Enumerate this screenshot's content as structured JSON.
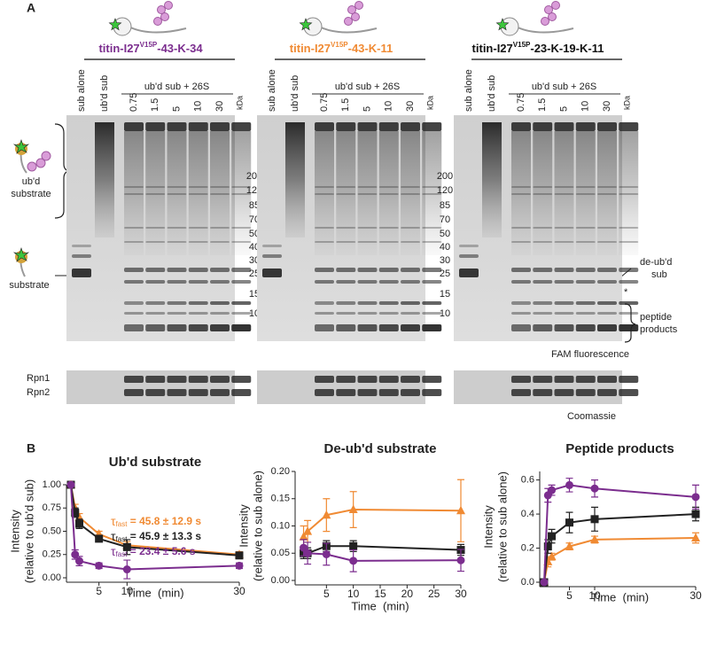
{
  "panel_a": {
    "label": "A",
    "gels": [
      {
        "title": {
          "prefix": "titin-I27",
          "sup": "V15P",
          "suffix": "-43-K-34",
          "color": "#7b2d8e"
        }
      },
      {
        "title": {
          "prefix": "titin-I27",
          "sup": "V15P",
          "suffix": "-43-K-11",
          "color": "#f08a33"
        }
      },
      {
        "title": {
          "prefix": "titin-I27",
          "sup": "V15P",
          "suffix": "-23-K-19-K-11",
          "color": "#111111"
        }
      }
    ],
    "lanes": {
      "sub_alone": "sub alone",
      "ubd_sub": "ub'd sub",
      "group": "ub'd sub + 26S",
      "times": [
        "0.75",
        "1.5",
        "5",
        "10",
        "30"
      ]
    },
    "kda": "kDa",
    "markers": [
      "200",
      "120",
      "85",
      "70",
      "50",
      "40",
      "30",
      "25",
      "15",
      "10"
    ],
    "left_labels": {
      "ubd_substrate": [
        "ub'd",
        "substrate"
      ],
      "substrate": "substrate"
    },
    "right_labels": {
      "deubd": [
        "de-ub'd",
        "sub"
      ],
      "star": "*",
      "peptide": [
        "peptide",
        "products"
      ]
    },
    "fam": "FAM fluorescence",
    "coomassie": {
      "rpn1": "Rpn1",
      "rpn2": "Rpn2",
      "label": "Coomassie"
    }
  },
  "panel_b": {
    "label": "B"
  },
  "chart_data": [
    {
      "type": "line",
      "title": "Ub'd substrate",
      "ylabel": [
        "Intensity",
        "(relative to ub'd sub)"
      ],
      "xlabel": "Time  (min)",
      "x": [
        0,
        0.75,
        1.5,
        5,
        10,
        30
      ],
      "xlim": [
        0,
        30
      ],
      "xticks": [
        5,
        10,
        30
      ],
      "ylim": [
        0,
        1
      ],
      "yticks": [
        {
          "value": 0,
          "label": "0.00"
        },
        {
          "value": 0.25,
          "label": "0.25"
        },
        {
          "value": 0.5,
          "label": "0.50"
        },
        {
          "value": 0.75,
          "label": "0.75"
        },
        {
          "value": 1,
          "label": "1.00"
        }
      ],
      "series": [
        {
          "color": "#f08a33",
          "marker": "triangle",
          "values": [
            1.0,
            0.75,
            0.65,
            0.47,
            0.35,
            0.25
          ],
          "errors": [
            0,
            0.04,
            0.04,
            0.03,
            0.04,
            0.03
          ]
        },
        {
          "color": "#222222",
          "marker": "square",
          "values": [
            1.0,
            0.7,
            0.58,
            0.42,
            0.33,
            0.24
          ],
          "errors": [
            0,
            0.05,
            0.05,
            0.03,
            0.08,
            0.03
          ]
        },
        {
          "color": "#7b2d8e",
          "marker": "circle",
          "values": [
            1.0,
            0.25,
            0.18,
            0.13,
            0.09,
            0.13
          ],
          "errors": [
            0,
            0.05,
            0.05,
            0.03,
            0.1,
            0.03
          ]
        }
      ],
      "annotations": [
        {
          "symbol": "τ",
          "sub": "fast",
          "text": " = 45.8 ± 12.9 s",
          "color": "#f08a33"
        },
        {
          "symbol": "τ",
          "sub": "fast",
          "text": " = 45.9 ± 13.3 s",
          "color": "#222222"
        },
        {
          "symbol": "τ",
          "sub": "fast",
          "text": " = 23.4 ± 5.6 s",
          "color": "#7b2d8e"
        }
      ]
    },
    {
      "type": "line",
      "title": "De-ub'd substrate",
      "ylabel": [
        "Intensity",
        "(relative to sub alone)"
      ],
      "xlabel": "Time  (min)",
      "x": [
        0.75,
        1.5,
        5,
        10,
        30
      ],
      "xlim": [
        0,
        30
      ],
      "xticks": [
        5,
        10,
        15,
        20,
        25,
        30
      ],
      "ylim": [
        0,
        0.2
      ],
      "yticks": [
        {
          "value": 0,
          "label": "0.00"
        },
        {
          "value": 0.05,
          "label": "0.05"
        },
        {
          "value": 0.1,
          "label": "0.10"
        },
        {
          "value": 0.15,
          "label": "0.15"
        },
        {
          "value": 0.2,
          "label": "0.20"
        }
      ],
      "series": [
        {
          "color": "#f08a33",
          "marker": "triangle",
          "values": [
            0.08,
            0.09,
            0.12,
            0.13,
            0.128
          ],
          "errors": [
            0.02,
            0.02,
            0.03,
            0.033,
            0.057
          ]
        },
        {
          "color": "#222222",
          "marker": "square",
          "values": [
            0.05,
            0.05,
            0.063,
            0.063,
            0.056
          ],
          "errors": [
            0.01,
            0.01,
            0.01,
            0.01,
            0.01
          ]
        },
        {
          "color": "#7b2d8e",
          "marker": "circle",
          "values": [
            0.06,
            0.05,
            0.048,
            0.036,
            0.037
          ],
          "errors": [
            0.015,
            0.02,
            0.02,
            0.02,
            0.02
          ]
        }
      ]
    },
    {
      "type": "line",
      "title": "Peptide products",
      "ylabel": [
        "Intensity",
        "(relative to sub alone)"
      ],
      "xlabel": "Time  (min)",
      "x": [
        0,
        0.75,
        1.5,
        5,
        10,
        30
      ],
      "xlim": [
        0,
        30
      ],
      "xticks": [
        5,
        10,
        30
      ],
      "ylim": [
        0,
        0.65
      ],
      "yticks": [
        {
          "value": 0,
          "label": "0.0"
        },
        {
          "value": 0.2,
          "label": "0.2"
        },
        {
          "value": 0.4,
          "label": "0.4"
        },
        {
          "value": 0.6,
          "label": "0.6"
        }
      ],
      "series": [
        {
          "color": "#f08a33",
          "marker": "triangle",
          "values": [
            0,
            0.12,
            0.15,
            0.21,
            0.25,
            0.26
          ],
          "errors": [
            0,
            0.03,
            0.02,
            0.02,
            0.02,
            0.03
          ]
        },
        {
          "color": "#222222",
          "marker": "square",
          "values": [
            0,
            0.21,
            0.27,
            0.35,
            0.37,
            0.4
          ],
          "errors": [
            0,
            0.04,
            0.04,
            0.06,
            0.07,
            0.04
          ]
        },
        {
          "color": "#7b2d8e",
          "marker": "circle",
          "values": [
            0,
            0.51,
            0.54,
            0.57,
            0.55,
            0.5
          ],
          "errors": [
            0,
            0.04,
            0.03,
            0.04,
            0.05,
            0.07
          ]
        }
      ]
    }
  ]
}
